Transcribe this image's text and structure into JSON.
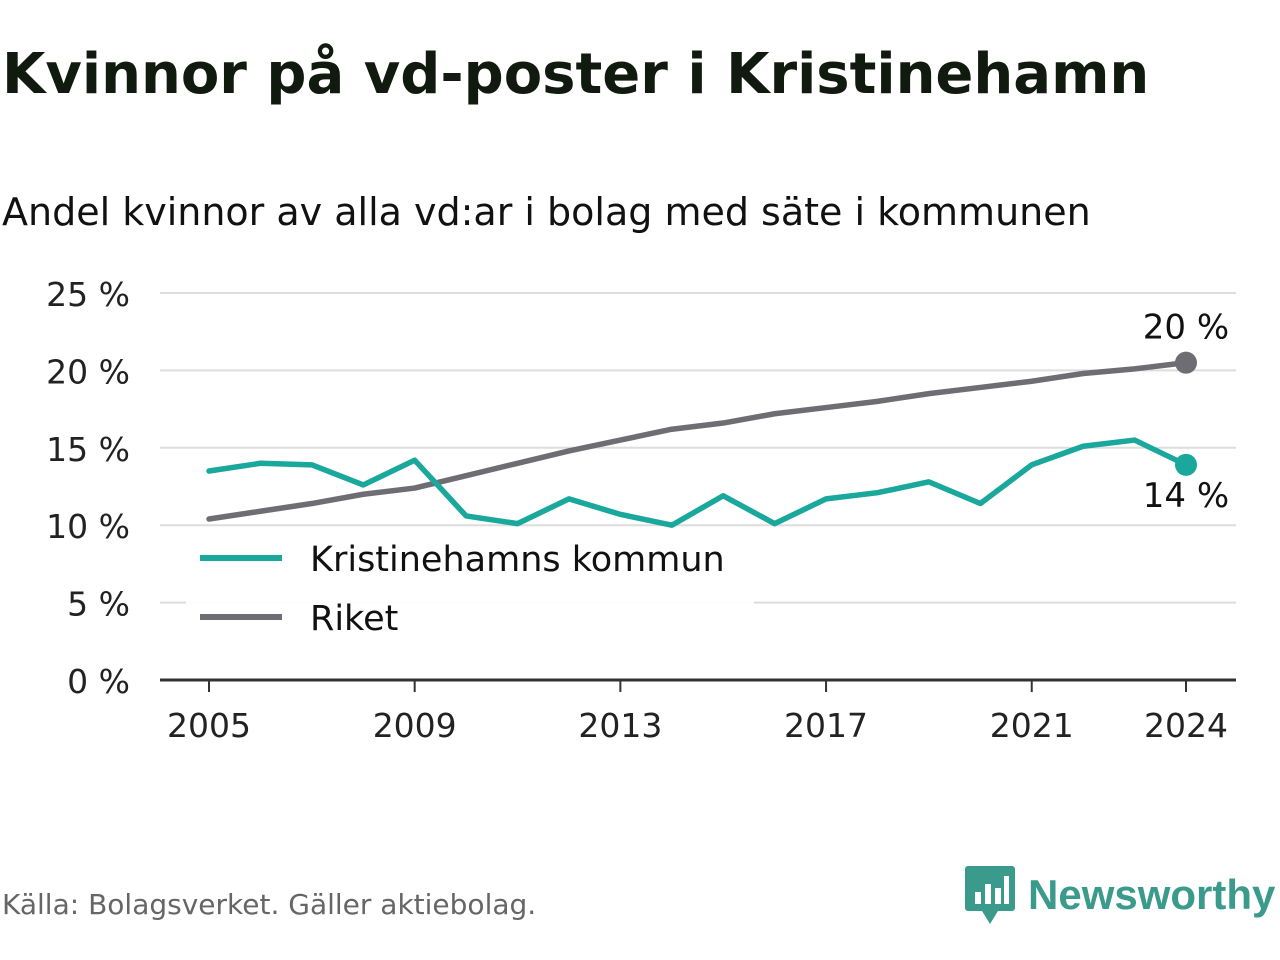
{
  "title": "Kvinnor på vd-poster i Kristinehamn",
  "subtitle": "Andel kvinnor av alla vd:ar i bolag med säte i kommunen",
  "source": "Källa: Bolagsverket. Gäller aktiebolag.",
  "brand": {
    "name": "Newsworthy",
    "icon": "newsworthy-logo-icon",
    "color": "#3a9a8b"
  },
  "chart_data": {
    "type": "line",
    "x": [
      2005,
      2006,
      2007,
      2008,
      2009,
      2010,
      2011,
      2012,
      2013,
      2014,
      2015,
      2016,
      2017,
      2018,
      2019,
      2020,
      2021,
      2022,
      2023,
      2024
    ],
    "x_ticks": [
      2005,
      2009,
      2013,
      2017,
      2021,
      2024
    ],
    "x_tick_labels": [
      "2005",
      "2009",
      "2013",
      "2017",
      "2021",
      "2024"
    ],
    "y_ticks": [
      0,
      5,
      10,
      15,
      20,
      25
    ],
    "y_tick_labels": [
      "0 %",
      "5 %",
      "10 %",
      "15 %",
      "20 %",
      "25 %"
    ],
    "ylim": [
      0,
      25
    ],
    "grid": true,
    "legend_position": "bottom-left",
    "series": [
      {
        "name": "Kristinehamns kommun",
        "color": "#1aa79c",
        "values": [
          13.5,
          14.0,
          13.9,
          12.6,
          14.2,
          10.6,
          10.1,
          11.7,
          10.7,
          10.0,
          11.9,
          10.1,
          11.7,
          12.1,
          12.8,
          11.4,
          13.9,
          15.1,
          15.5,
          13.9
        ],
        "end_label": "14 %"
      },
      {
        "name": "Riket",
        "color": "#6e6d74",
        "values": [
          10.4,
          10.9,
          11.4,
          12.0,
          12.4,
          13.2,
          14.0,
          14.8,
          15.5,
          16.2,
          16.6,
          17.2,
          17.6,
          18.0,
          18.5,
          18.9,
          19.3,
          19.8,
          20.1,
          20.5
        ],
        "end_label": "20 %"
      }
    ]
  }
}
